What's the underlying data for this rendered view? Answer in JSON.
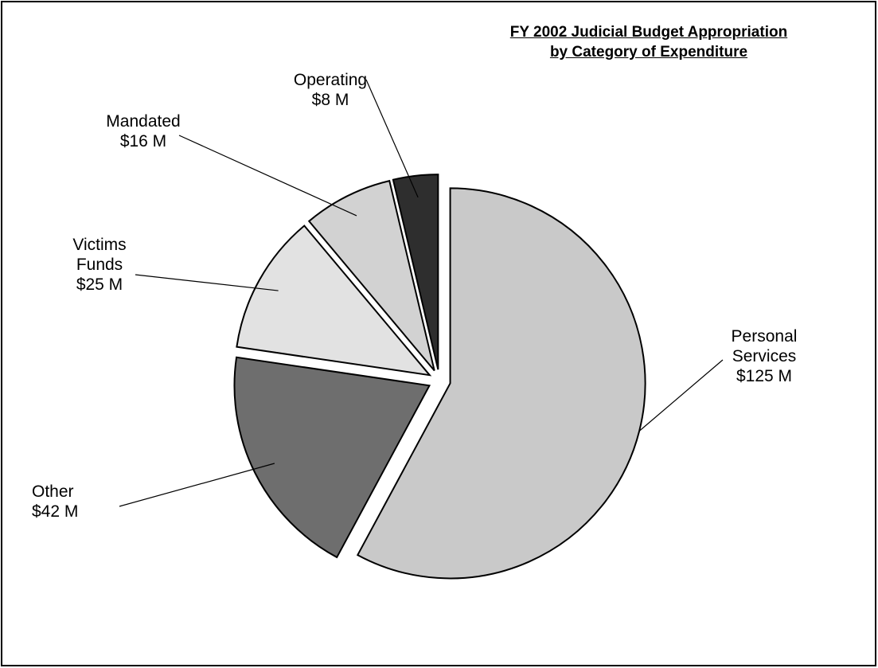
{
  "chart_data": {
    "type": "pie",
    "title": "FY 2002 Judicial Budget Appropriation",
    "subtitle": "by Category of Expenditure",
    "categories": [
      "Personal Services",
      "Other",
      "Victims Funds",
      "Mandated",
      "Operating"
    ],
    "values": [
      125,
      42,
      25,
      16,
      8
    ],
    "value_labels": [
      "$125 M",
      "$42 M",
      "$25 M",
      "$16 M",
      "$8 M"
    ],
    "colors": [
      "#c9c9c9",
      "#6e6e6e",
      "#e2e2e2",
      "#d2d2d2",
      "#2e2e2e"
    ]
  }
}
